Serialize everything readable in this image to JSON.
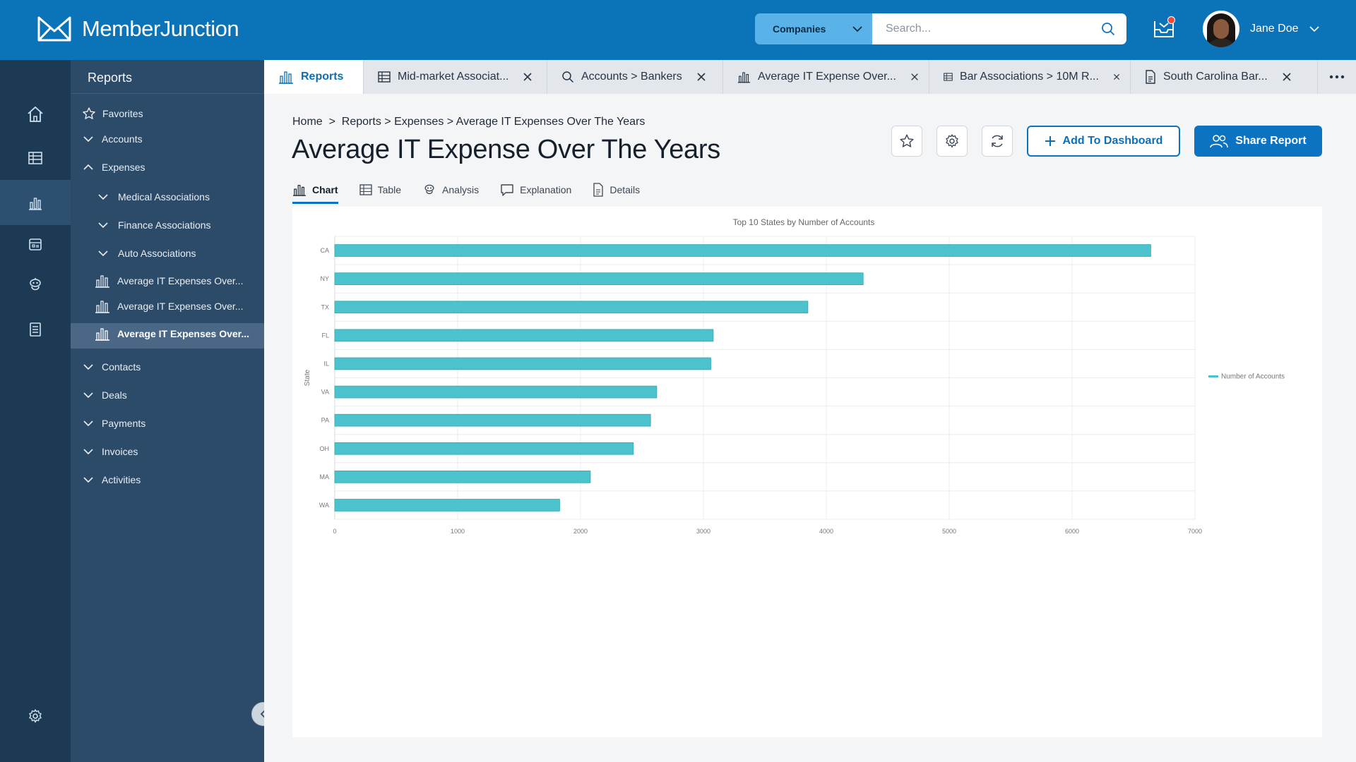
{
  "app": {
    "name": "MemberJunction",
    "search_scope": "Companies",
    "search_placeholder": "Search...",
    "user_name": "Jane Doe"
  },
  "rail": {
    "items": [
      "home-icon",
      "grid-icon",
      "chart-icon",
      "calendar-icon",
      "robot-icon",
      "list-icon"
    ],
    "settings": "gear-icon"
  },
  "sidebar": {
    "title": "Reports",
    "favorites": "Favorites",
    "accounts": "Accounts",
    "expenses": "Expenses",
    "medical": "Medical Associations",
    "finance": "Finance Associations",
    "auto": "Auto Associations",
    "report1": "Average IT Expenses Over...",
    "report2": "Average IT Expenses Over...",
    "report3": "Average IT Expenses Over...",
    "contacts": "Contacts",
    "deals": "Deals",
    "payments": "Payments",
    "invoices": "Invoices",
    "activities": "Activities"
  },
  "tabs": [
    {
      "label": "Reports"
    },
    {
      "label": "Mid-market Associat..."
    },
    {
      "label": "Accounts > Bankers"
    },
    {
      "label": "Average IT Expense Over..."
    },
    {
      "label": "Bar Associations > 10M R..."
    },
    {
      "label": "South Carolina Bar..."
    }
  ],
  "page": {
    "breadcrumb": "Home  >  Reports > Expenses > Average IT Expenses Over The Years",
    "title": "Average IT Expense Over The Years",
    "add_dashboard": "Add To Dashboard",
    "share_report": "Share Report"
  },
  "subtabs": {
    "chart": "Chart",
    "table": "Table",
    "analysis": "Analysis",
    "explanation": "Explanation",
    "details": "Details"
  },
  "chart_data": {
    "type": "bar",
    "orientation": "horizontal",
    "title": "Top 10 States by Number of Accounts",
    "xlabel": "",
    "ylabel": "State",
    "categories": [
      "CA",
      "NY",
      "TX",
      "FL",
      "IL",
      "VA",
      "PA",
      "OH",
      "MA",
      "WA"
    ],
    "series": [
      {
        "name": "Number of Accounts",
        "values": [
          6640,
          4300,
          3850,
          3080,
          3060,
          2620,
          2570,
          2430,
          2080,
          1830
        ]
      }
    ],
    "xlim": [
      0,
      7000
    ],
    "xticks": [
      0,
      1000,
      2000,
      3000,
      4000,
      5000,
      6000,
      7000
    ],
    "grid": true,
    "legend": "right",
    "color": "#4cc3cc"
  }
}
